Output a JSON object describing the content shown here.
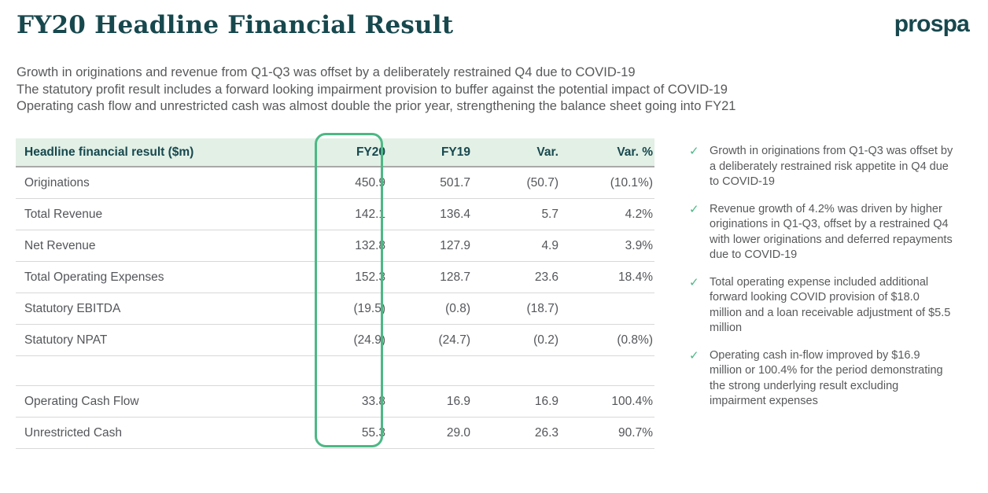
{
  "header": {
    "title": "FY20 Headline Financial Result",
    "logo": "prospa"
  },
  "intro": {
    "lines": [
      "Growth in originations and revenue from Q1-Q3 was offset by a deliberately restrained Q4 due to COVID-19",
      "The statutory profit result includes a forward looking impairment provision to buffer against the potential impact of COVID-19",
      "Operating cash flow and unrestricted cash was almost double the prior year, strengthening the balance sheet going into FY21"
    ]
  },
  "table": {
    "columns": [
      "Headline financial result ($m)",
      "FY20",
      "FY19",
      "Var.",
      "Var. %"
    ],
    "rows": [
      {
        "label": "Originations",
        "fy20": "450.9",
        "fy19": "501.7",
        "var": "(50.7)",
        "var_pct": "(10.1%)"
      },
      {
        "label": "Total Revenue",
        "fy20": "142.1",
        "fy19": "136.4",
        "var": "5.7",
        "var_pct": "4.2%"
      },
      {
        "label": "Net Revenue",
        "fy20": "132.8",
        "fy19": "127.9",
        "var": "4.9",
        "var_pct": "3.9%"
      },
      {
        "label": "Total Operating Expenses",
        "fy20": "152.3",
        "fy19": "128.7",
        "var": "23.6",
        "var_pct": "18.4%"
      },
      {
        "label": "Statutory EBITDA",
        "fy20": "(19.5)",
        "fy19": "(0.8)",
        "var": "(18.7)",
        "var_pct": ""
      },
      {
        "label": "Statutory NPAT",
        "fy20": "(24.9)",
        "fy19": "(24.7)",
        "var": "(0.2)",
        "var_pct": "(0.8%)"
      },
      {
        "label": "",
        "fy20": "",
        "fy19": "",
        "var": "",
        "var_pct": ""
      },
      {
        "label": "Operating Cash Flow",
        "fy20": "33.8",
        "fy19": "16.9",
        "var": "16.9",
        "var_pct": "100.4%"
      },
      {
        "label": "Unrestricted Cash",
        "fy20": "55.3",
        "fy19": "29.0",
        "var": "26.3",
        "var_pct": "90.7%"
      }
    ]
  },
  "highlights": [
    "Growth in originations from Q1-Q3 was offset by a deliberately restrained risk appetite in Q4 due to COVID-19",
    "Revenue growth of 4.2% was driven by higher originations in Q1-Q3, offset by a restrained Q4 with lower originations and deferred repayments due to COVID-19",
    "Total operating expense included additional forward looking COVID provision of $18.0 million and a loan receivable adjustment of $5.5 million",
    "Operating cash in-flow improved by $16.9 million or 100.4% for the period demonstrating the strong underlying result excluding impairment expenses"
  ],
  "icons": {
    "check": "✓"
  },
  "colors": {
    "brand_teal": "#17484e",
    "accent_green": "#4cb885",
    "table_header_bg": "#e2f0e6",
    "body_text": "#58595b"
  }
}
